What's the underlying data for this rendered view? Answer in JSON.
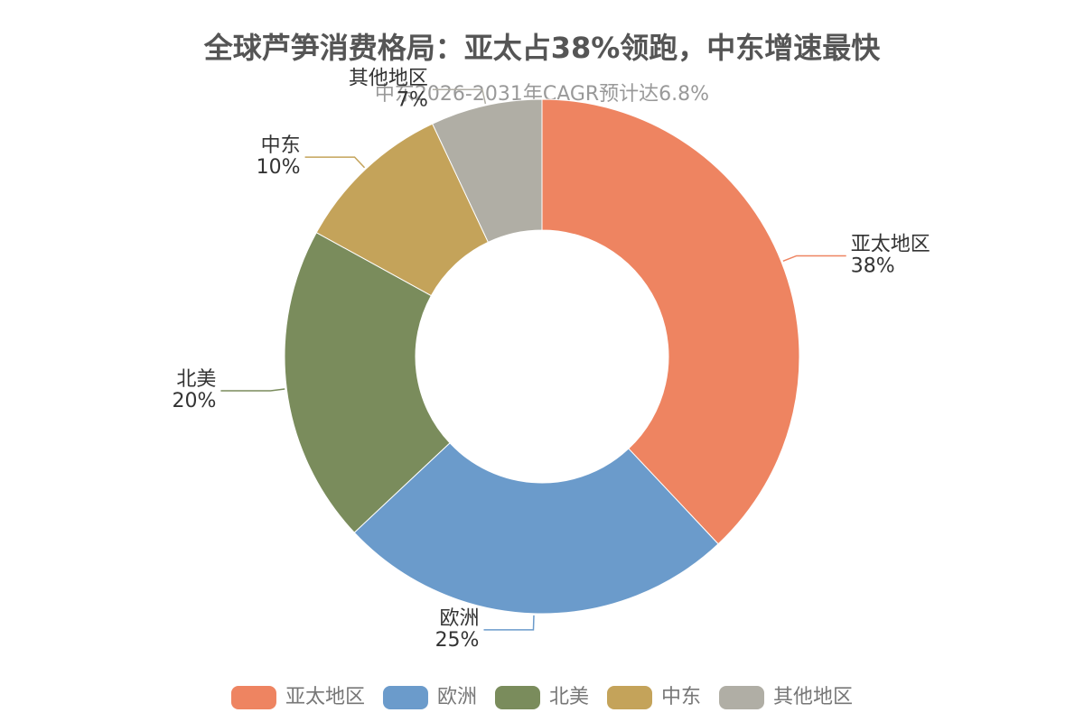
{
  "chart_data": {
    "type": "donut",
    "title": "全球芦笋消费格局：亚太占38%领跑，中东增速最快",
    "subtitle": "中东2026-2031年CAGR预计达6.8%",
    "categories": [
      "亚太地区",
      "欧洲",
      "北美",
      "中东",
      "其他地区"
    ],
    "values": [
      38,
      25,
      20,
      10,
      7
    ],
    "value_labels": [
      "38%",
      "25%",
      "20%",
      "10%",
      "7%"
    ],
    "colors": [
      "#ee8461",
      "#6b9bcb",
      "#7a8c5c",
      "#c4a35a",
      "#b0aea5"
    ],
    "legend": "bottom"
  }
}
